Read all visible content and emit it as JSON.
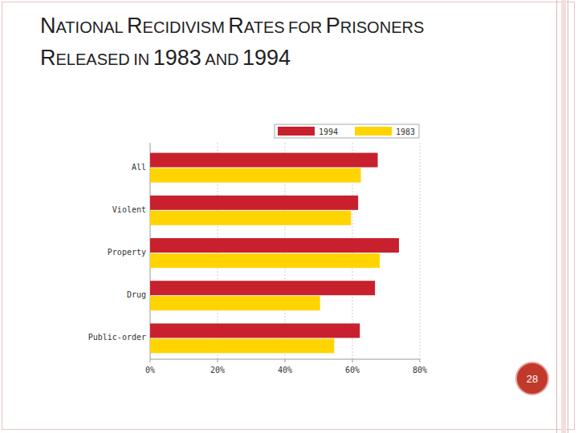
{
  "chart_data": {
    "type": "bar",
    "orientation": "horizontal",
    "title": "NATIONAL RECIDIVISM RATES FOR PRISONERS RELEASED IN 1983 AND 1994",
    "categories": [
      "All",
      "Violent",
      "Property",
      "Drug",
      "Public-order"
    ],
    "series": [
      {
        "name": "1994",
        "color": "#c9202e",
        "values": [
          67.5,
          61.7,
          73.8,
          66.7,
          62.2
        ]
      },
      {
        "name": "1983",
        "color": "#ffd400",
        "values": [
          62.5,
          59.6,
          68.1,
          50.4,
          54.6
        ]
      }
    ],
    "xlim": [
      0,
      80
    ],
    "xticks": [
      {
        "value": 0,
        "label": "0%"
      },
      {
        "value": 20,
        "label": "20%"
      },
      {
        "value": 40,
        "label": "40%"
      },
      {
        "value": 60,
        "label": "60%"
      },
      {
        "value": 80,
        "label": "80%"
      }
    ],
    "grid": true,
    "legend": "top-right"
  },
  "page_number": "28"
}
